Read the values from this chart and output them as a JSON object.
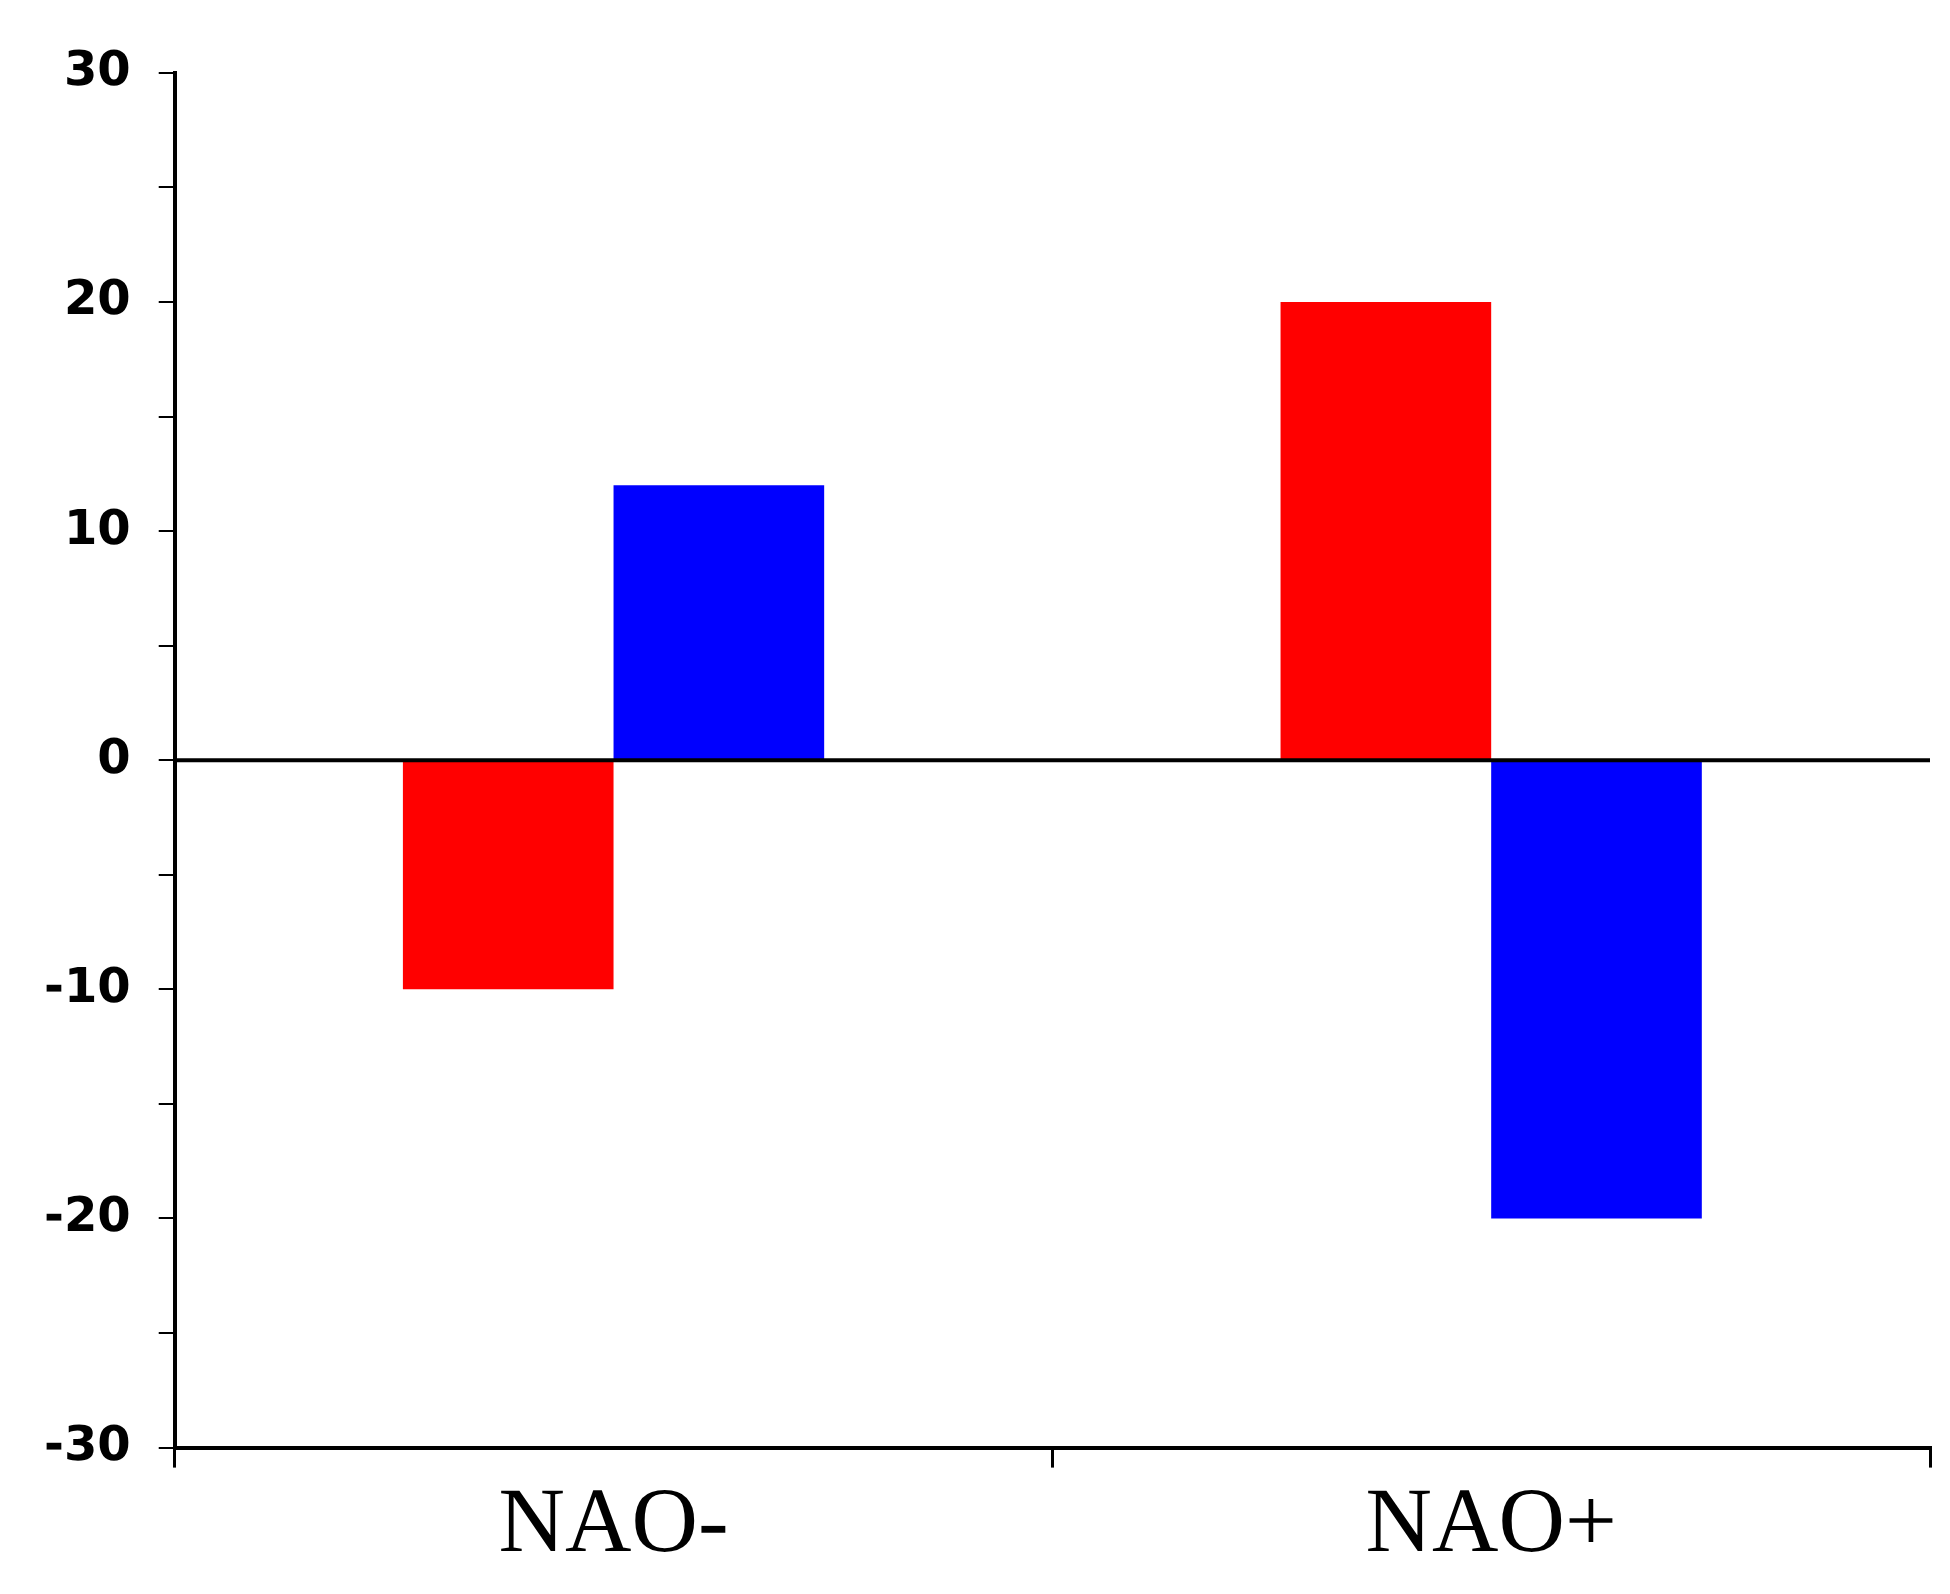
{
  "chart_data": {
    "type": "bar",
    "categories": [
      "NAO-",
      "NAO+"
    ],
    "series": [
      {
        "color": "#ff0000",
        "values": [
          -10,
          20
        ]
      },
      {
        "color": "#0000ff",
        "values": [
          12,
          -20
        ]
      }
    ],
    "ylim": [
      -30,
      30
    ],
    "yticks": [
      -30,
      {
        "value": -25,
        "label": null
      },
      -20,
      {
        "value": -15,
        "label": null
      },
      -10,
      {
        "value": -5,
        "label": null
      },
      0,
      {
        "value": 5,
        "label": null
      },
      10,
      {
        "value": 15,
        "label": null
      },
      20,
      {
        "value": 25,
        "label": null
      },
      30
    ],
    "ref_lines": [
      {
        "axis": "y",
        "value": 0,
        "color": "#000000"
      }
    ],
    "grid": false,
    "legend": false
  }
}
